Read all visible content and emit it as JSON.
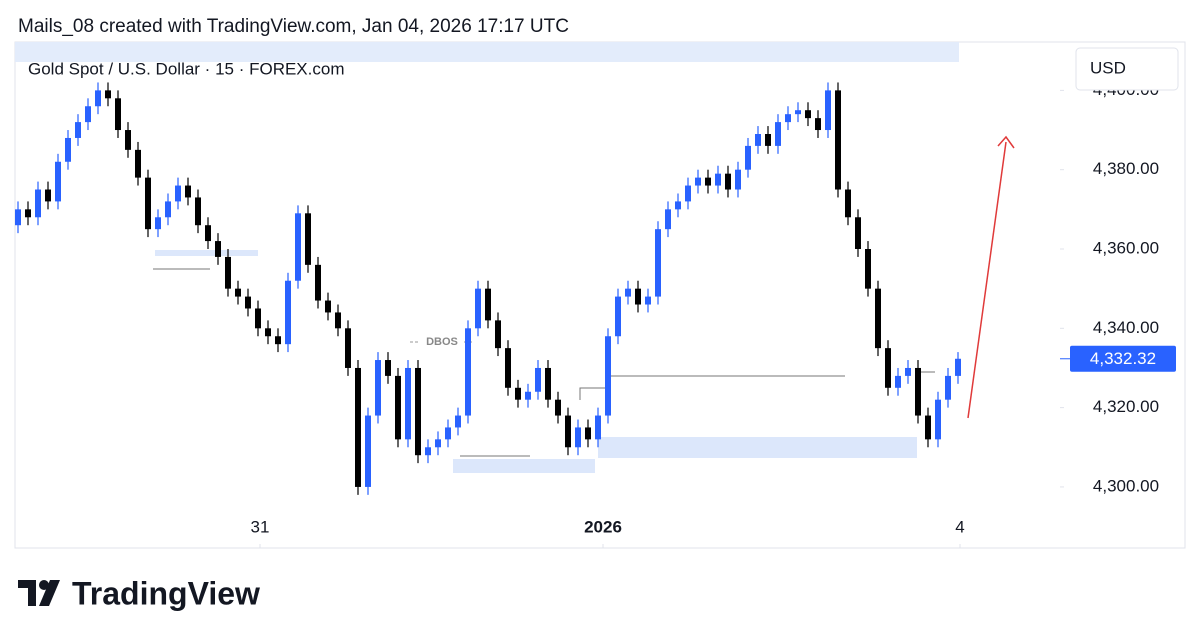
{
  "header": {
    "credit": "Mails_08 created with TradingView.com, Jan 04, 2026 17:17 UTC"
  },
  "chart_data": {
    "type": "candlestick",
    "title": "Gold Spot / U.S. Dollar · 15 · FOREX.com",
    "currency": "USD",
    "up_color": "#2962ff",
    "down_color": "#000000",
    "categories": [
      null,
      null,
      null,
      null,
      null,
      null,
      null,
      null,
      null,
      null,
      null,
      null,
      null,
      null,
      null,
      null,
      null,
      null,
      null,
      null,
      null,
      null,
      null,
      null,
      null,
      null,
      null,
      null,
      null,
      null,
      null,
      null,
      null,
      null,
      null,
      null,
      null,
      null,
      null,
      null,
      null,
      null,
      null,
      null,
      null,
      null,
      null,
      null,
      null,
      null,
      null,
      null,
      null,
      null,
      null,
      null,
      null,
      null,
      null,
      null,
      null,
      null,
      null,
      null,
      null,
      null,
      null,
      null,
      null,
      null,
      null,
      null,
      null,
      null,
      null,
      null,
      null,
      null,
      null,
      null,
      null,
      null,
      null,
      null,
      null,
      null,
      null,
      null,
      null,
      null,
      null,
      null,
      null,
      null,
      null
    ],
    "open": [
      4366,
      4370,
      4368,
      4375,
      4372,
      4382,
      4388,
      4392,
      4396,
      4400,
      4398,
      4390,
      4385,
      4378,
      4365,
      4368,
      4372,
      4376,
      4373,
      4366,
      4362,
      4358,
      4350,
      4348,
      4345,
      4340,
      4338,
      4336,
      4352,
      4369,
      4356,
      4347,
      4344,
      4340,
      4330,
      4300,
      4318,
      4332,
      4328,
      4312,
      4330,
      4308,
      4310,
      4312,
      4315,
      4318,
      4340,
      4350,
      4342,
      4335,
      4325,
      4322,
      4324,
      4330,
      4322,
      4318,
      4310,
      4315,
      4312,
      4318,
      4338,
      4348,
      4350,
      4346,
      4348,
      4365,
      4370,
      4372,
      4376,
      4378,
      4376,
      4379,
      4375,
      4380,
      4386,
      4389,
      4386,
      4392,
      4394,
      4395,
      4393,
      4390,
      4400,
      4375,
      4368,
      4360,
      4350,
      4335,
      4325,
      4328,
      4330,
      4318,
      4312,
      4322,
      4328
    ],
    "high": [
      4372,
      4372,
      4377,
      4377,
      4384,
      4390,
      4394,
      4398,
      4402,
      4402,
      4400,
      4392,
      4387,
      4380,
      4370,
      4374,
      4378,
      4378,
      4375,
      4368,
      4364,
      4360,
      4352,
      4350,
      4347,
      4342,
      4340,
      4354,
      4371,
      4371,
      4358,
      4349,
      4346,
      4342,
      4332,
      4320,
      4334,
      4334,
      4330,
      4332,
      4332,
      4312,
      4314,
      4317,
      4320,
      4342,
      4352,
      4352,
      4344,
      4337,
      4327,
      4326,
      4332,
      4332,
      4324,
      4320,
      4317,
      4317,
      4320,
      4340,
      4350,
      4352,
      4352,
      4350,
      4367,
      4372,
      4374,
      4378,
      4380,
      4380,
      4381,
      4381,
      4382,
      4388,
      4391,
      4391,
      4394,
      4396,
      4397,
      4397,
      4395,
      4402,
      4402,
      4377,
      4370,
      4362,
      4352,
      4337,
      4330,
      4332,
      4332,
      4320,
      4324,
      4330,
      4334
    ],
    "low": [
      4364,
      4366,
      4366,
      4370,
      4370,
      4380,
      4386,
      4390,
      4394,
      4396,
      4388,
      4383,
      4376,
      4363,
      4363,
      4366,
      4370,
      4371,
      4364,
      4360,
      4356,
      4348,
      4346,
      4343,
      4338,
      4336,
      4334,
      4334,
      4350,
      4354,
      4345,
      4342,
      4338,
      4328,
      4298,
      4298,
      4316,
      4326,
      4310,
      4310,
      4306,
      4306,
      4308,
      4310,
      4313,
      4316,
      4338,
      4340,
      4333,
      4323,
      4320,
      4320,
      4322,
      4320,
      4316,
      4308,
      4308,
      4310,
      4310,
      4316,
      4336,
      4346,
      4344,
      4344,
      4346,
      4363,
      4368,
      4370,
      4374,
      4374,
      4374,
      4373,
      4373,
      4378,
      4384,
      4384,
      4384,
      4390,
      4392,
      4391,
      4388,
      4388,
      4373,
      4366,
      4358,
      4348,
      4333,
      4323,
      4323,
      4326,
      4316,
      4310,
      4310,
      4320,
      4326
    ],
    "close": [
      4370,
      4368,
      4375,
      4372,
      4382,
      4388,
      4392,
      4396,
      4400,
      4398,
      4390,
      4385,
      4378,
      4365,
      4368,
      4372,
      4376,
      4373,
      4366,
      4362,
      4358,
      4350,
      4348,
      4345,
      4340,
      4338,
      4336,
      4352,
      4369,
      4356,
      4347,
      4344,
      4340,
      4330,
      4300,
      4318,
      4332,
      4328,
      4312,
      4330,
      4308,
      4310,
      4312,
      4315,
      4318,
      4340,
      4350,
      4342,
      4335,
      4325,
      4322,
      4324,
      4330,
      4322,
      4318,
      4310,
      4315,
      4312,
      4318,
      4338,
      4348,
      4350,
      4346,
      4348,
      4365,
      4370,
      4372,
      4376,
      4378,
      4376,
      4379,
      4375,
      4380,
      4386,
      4389,
      4386,
      4392,
      4394,
      4395,
      4393,
      4390,
      4400,
      4375,
      4368,
      4360,
      4350,
      4335,
      4325,
      4328,
      4330,
      4318,
      4312,
      4322,
      4328,
      4332.32
    ],
    "last_price": {
      "value": 4332.32,
      "label": "4,332.32"
    },
    "ylim": [
      4284.6,
      4412.2
    ],
    "yticks": [
      {
        "value": 4300,
        "label": "4,300.00"
      },
      {
        "value": 4320,
        "label": "4,320.00"
      },
      {
        "value": 4340,
        "label": "4,340.00"
      },
      {
        "value": 4360,
        "label": "4,360.00"
      },
      {
        "value": 4380,
        "label": "4,380.00"
      },
      {
        "value": 4400,
        "label": "4,400.00"
      }
    ],
    "xticks": [
      {
        "value": 24.2,
        "label": "31"
      },
      {
        "value": 58.5,
        "label": "2026"
      },
      {
        "value": 94.2,
        "label": "4"
      }
    ],
    "annotations": [
      "DBOS"
    ]
  },
  "footer": {
    "brand": "TradingView"
  }
}
